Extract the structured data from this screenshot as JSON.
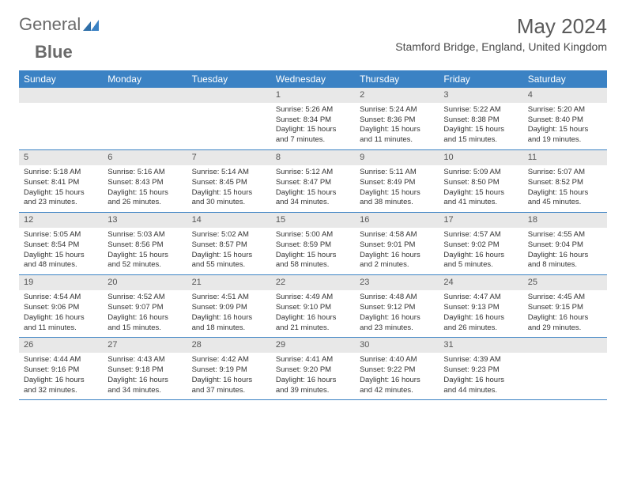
{
  "logo": {
    "part1": "General",
    "part2": "Blue"
  },
  "title": "May 2024",
  "location": "Stamford Bridge, England, United Kingdom",
  "colors": {
    "header_bg": "#3b82c4",
    "header_text": "#ffffff",
    "daynum_bg": "#e8e8e8",
    "row_border": "#3b82c4",
    "text": "#333333"
  },
  "day_names": [
    "Sunday",
    "Monday",
    "Tuesday",
    "Wednesday",
    "Thursday",
    "Friday",
    "Saturday"
  ],
  "weeks": [
    [
      {
        "n": "",
        "sr": "",
        "ss": "",
        "dl": ""
      },
      {
        "n": "",
        "sr": "",
        "ss": "",
        "dl": ""
      },
      {
        "n": "",
        "sr": "",
        "ss": "",
        "dl": ""
      },
      {
        "n": "1",
        "sr": "Sunrise: 5:26 AM",
        "ss": "Sunset: 8:34 PM",
        "dl": "Daylight: 15 hours and 7 minutes."
      },
      {
        "n": "2",
        "sr": "Sunrise: 5:24 AM",
        "ss": "Sunset: 8:36 PM",
        "dl": "Daylight: 15 hours and 11 minutes."
      },
      {
        "n": "3",
        "sr": "Sunrise: 5:22 AM",
        "ss": "Sunset: 8:38 PM",
        "dl": "Daylight: 15 hours and 15 minutes."
      },
      {
        "n": "4",
        "sr": "Sunrise: 5:20 AM",
        "ss": "Sunset: 8:40 PM",
        "dl": "Daylight: 15 hours and 19 minutes."
      }
    ],
    [
      {
        "n": "5",
        "sr": "Sunrise: 5:18 AM",
        "ss": "Sunset: 8:41 PM",
        "dl": "Daylight: 15 hours and 23 minutes."
      },
      {
        "n": "6",
        "sr": "Sunrise: 5:16 AM",
        "ss": "Sunset: 8:43 PM",
        "dl": "Daylight: 15 hours and 26 minutes."
      },
      {
        "n": "7",
        "sr": "Sunrise: 5:14 AM",
        "ss": "Sunset: 8:45 PM",
        "dl": "Daylight: 15 hours and 30 minutes."
      },
      {
        "n": "8",
        "sr": "Sunrise: 5:12 AM",
        "ss": "Sunset: 8:47 PM",
        "dl": "Daylight: 15 hours and 34 minutes."
      },
      {
        "n": "9",
        "sr": "Sunrise: 5:11 AM",
        "ss": "Sunset: 8:49 PM",
        "dl": "Daylight: 15 hours and 38 minutes."
      },
      {
        "n": "10",
        "sr": "Sunrise: 5:09 AM",
        "ss": "Sunset: 8:50 PM",
        "dl": "Daylight: 15 hours and 41 minutes."
      },
      {
        "n": "11",
        "sr": "Sunrise: 5:07 AM",
        "ss": "Sunset: 8:52 PM",
        "dl": "Daylight: 15 hours and 45 minutes."
      }
    ],
    [
      {
        "n": "12",
        "sr": "Sunrise: 5:05 AM",
        "ss": "Sunset: 8:54 PM",
        "dl": "Daylight: 15 hours and 48 minutes."
      },
      {
        "n": "13",
        "sr": "Sunrise: 5:03 AM",
        "ss": "Sunset: 8:56 PM",
        "dl": "Daylight: 15 hours and 52 minutes."
      },
      {
        "n": "14",
        "sr": "Sunrise: 5:02 AM",
        "ss": "Sunset: 8:57 PM",
        "dl": "Daylight: 15 hours and 55 minutes."
      },
      {
        "n": "15",
        "sr": "Sunrise: 5:00 AM",
        "ss": "Sunset: 8:59 PM",
        "dl": "Daylight: 15 hours and 58 minutes."
      },
      {
        "n": "16",
        "sr": "Sunrise: 4:58 AM",
        "ss": "Sunset: 9:01 PM",
        "dl": "Daylight: 16 hours and 2 minutes."
      },
      {
        "n": "17",
        "sr": "Sunrise: 4:57 AM",
        "ss": "Sunset: 9:02 PM",
        "dl": "Daylight: 16 hours and 5 minutes."
      },
      {
        "n": "18",
        "sr": "Sunrise: 4:55 AM",
        "ss": "Sunset: 9:04 PM",
        "dl": "Daylight: 16 hours and 8 minutes."
      }
    ],
    [
      {
        "n": "19",
        "sr": "Sunrise: 4:54 AM",
        "ss": "Sunset: 9:06 PM",
        "dl": "Daylight: 16 hours and 11 minutes."
      },
      {
        "n": "20",
        "sr": "Sunrise: 4:52 AM",
        "ss": "Sunset: 9:07 PM",
        "dl": "Daylight: 16 hours and 15 minutes."
      },
      {
        "n": "21",
        "sr": "Sunrise: 4:51 AM",
        "ss": "Sunset: 9:09 PM",
        "dl": "Daylight: 16 hours and 18 minutes."
      },
      {
        "n": "22",
        "sr": "Sunrise: 4:49 AM",
        "ss": "Sunset: 9:10 PM",
        "dl": "Daylight: 16 hours and 21 minutes."
      },
      {
        "n": "23",
        "sr": "Sunrise: 4:48 AM",
        "ss": "Sunset: 9:12 PM",
        "dl": "Daylight: 16 hours and 23 minutes."
      },
      {
        "n": "24",
        "sr": "Sunrise: 4:47 AM",
        "ss": "Sunset: 9:13 PM",
        "dl": "Daylight: 16 hours and 26 minutes."
      },
      {
        "n": "25",
        "sr": "Sunrise: 4:45 AM",
        "ss": "Sunset: 9:15 PM",
        "dl": "Daylight: 16 hours and 29 minutes."
      }
    ],
    [
      {
        "n": "26",
        "sr": "Sunrise: 4:44 AM",
        "ss": "Sunset: 9:16 PM",
        "dl": "Daylight: 16 hours and 32 minutes."
      },
      {
        "n": "27",
        "sr": "Sunrise: 4:43 AM",
        "ss": "Sunset: 9:18 PM",
        "dl": "Daylight: 16 hours and 34 minutes."
      },
      {
        "n": "28",
        "sr": "Sunrise: 4:42 AM",
        "ss": "Sunset: 9:19 PM",
        "dl": "Daylight: 16 hours and 37 minutes."
      },
      {
        "n": "29",
        "sr": "Sunrise: 4:41 AM",
        "ss": "Sunset: 9:20 PM",
        "dl": "Daylight: 16 hours and 39 minutes."
      },
      {
        "n": "30",
        "sr": "Sunrise: 4:40 AM",
        "ss": "Sunset: 9:22 PM",
        "dl": "Daylight: 16 hours and 42 minutes."
      },
      {
        "n": "31",
        "sr": "Sunrise: 4:39 AM",
        "ss": "Sunset: 9:23 PM",
        "dl": "Daylight: 16 hours and 44 minutes."
      },
      {
        "n": "",
        "sr": "",
        "ss": "",
        "dl": ""
      }
    ]
  ]
}
